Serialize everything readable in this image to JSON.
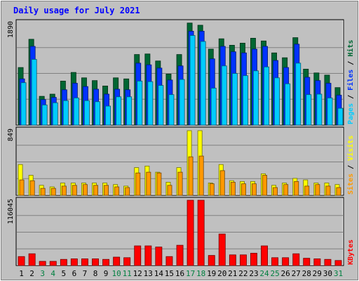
{
  "chart_data": {
    "type": "bar",
    "title": "Daily usage for July 2021",
    "days": [
      "1",
      "2",
      "3",
      "4",
      "5",
      "6",
      "7",
      "8",
      "9",
      "10",
      "11",
      "12",
      "13",
      "14",
      "15",
      "16",
      "17",
      "18",
      "19",
      "20",
      "21",
      "22",
      "23",
      "24",
      "25",
      "26",
      "27",
      "28",
      "29",
      "30",
      "31"
    ],
    "weekend_days": [
      "3",
      "4",
      "10",
      "11",
      "17",
      "18",
      "24",
      "25",
      "31"
    ],
    "panels": [
      {
        "id": "top",
        "ymax_label": "1890",
        "ymax": 1890,
        "legend": [
          "Pages",
          "Files",
          "Hits"
        ],
        "series": [
          {
            "name": "Hits",
            "color": "#006633",
            "values": [
              1060,
              1580,
              530,
              570,
              810,
              970,
              870,
              820,
              720,
              870,
              850,
              1300,
              1310,
              1180,
              940,
              1300,
              1880,
              1840,
              1400,
              1590,
              1470,
              1510,
              1600,
              1550,
              1330,
              1240,
              1610,
              1030,
              960,
              920,
              690
            ]
          },
          {
            "name": "Files",
            "color": "#0033ff",
            "values": [
              850,
              1450,
              470,
              510,
              650,
              770,
              710,
              660,
              570,
              660,
              650,
              1140,
              1110,
              1050,
              830,
              1090,
              1730,
              1730,
              1220,
              1450,
              1350,
              1330,
              1400,
              1450,
              1190,
              1060,
              1490,
              880,
              820,
              770,
              550
            ]
          },
          {
            "name": "Pages",
            "color": "#00ccff",
            "values": [
              780,
              1210,
              370,
              410,
              450,
              500,
              450,
              430,
              350,
              520,
              520,
              810,
              800,
              730,
              560,
              840,
              1650,
              1540,
              680,
              1090,
              950,
              910,
              1000,
              1070,
              870,
              760,
              1140,
              560,
              570,
              500,
              310
            ]
          }
        ]
      },
      {
        "id": "mid",
        "ymax_label": "849",
        "ymax": 849,
        "legend": [
          "Sites",
          "Visits"
        ],
        "series": [
          {
            "name": "Visits",
            "color": "#ffff00",
            "values": [
              400,
              260,
              130,
              110,
              160,
              160,
              160,
              160,
              160,
              140,
              120,
              360,
              380,
              300,
              170,
              360,
              840,
              840,
              160,
              400,
              190,
              180,
              180,
              280,
              130,
              160,
              220,
              200,
              160,
              160,
              140
            ]
          },
          {
            "name": "Sites",
            "color": "#ff9900",
            "values": [
              200,
              190,
              90,
              90,
              120,
              130,
              140,
              130,
              130,
              110,
              100,
              290,
              300,
              290,
              130,
              300,
              500,
              510,
              150,
              320,
              170,
              150,
              150,
              260,
              100,
              140,
              180,
              120,
              140,
              120,
              100
            ]
          }
        ]
      },
      {
        "id": "bot",
        "ymax_label": "116045",
        "ymax": 116045,
        "legend": [
          "KBytes"
        ],
        "series": [
          {
            "name": "KBytes",
            "color": "#ff0000",
            "values": [
              16000,
              21000,
              7500,
              7500,
              11000,
              12000,
              12000,
              12000,
              11000,
              15000,
              14000,
              35000,
              35000,
              33000,
              16000,
              36000,
              116045,
              116045,
              18000,
              56000,
              19000,
              19000,
              22000,
              35000,
              14000,
              14000,
              21000,
              13000,
              12000,
              11000,
              9000
            ]
          }
        ]
      }
    ],
    "colors": {
      "title": "#0000ff",
      "day_label": "#000000",
      "weekend_label": "#008040",
      "background": "#c0c0c0",
      "plot_bg": "#c0c0c0",
      "grid": "#808080"
    }
  }
}
